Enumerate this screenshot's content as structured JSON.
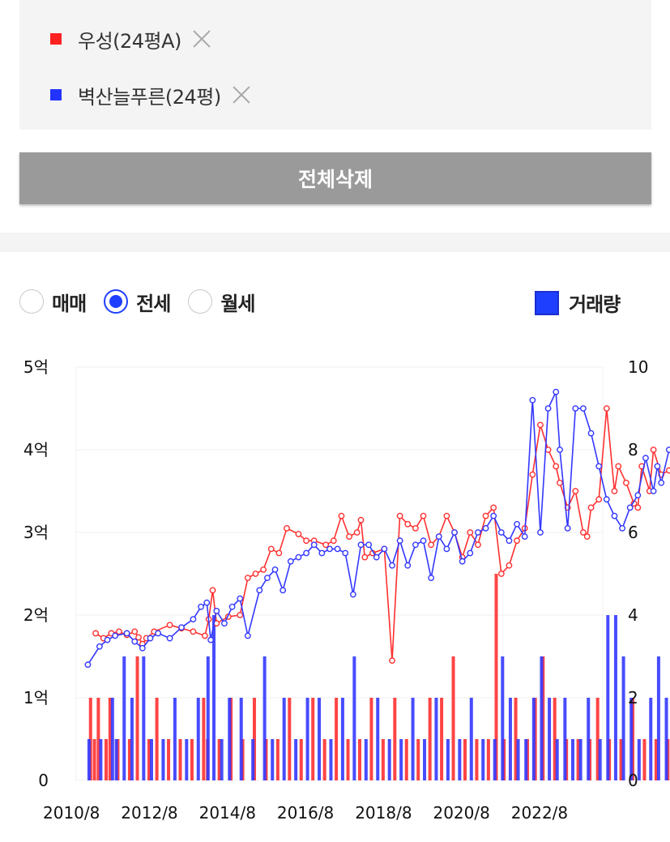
{
  "compare": {
    "items": [
      {
        "label": "우성(24평A)",
        "color": "#ff2020"
      },
      {
        "label": "벽산늘푸른(24평)",
        "color": "#2233ff"
      }
    ],
    "remove_icon": "close-icon"
  },
  "delete_all_label": "전체삭제",
  "tabs": [
    {
      "label": "매매",
      "selected": false
    },
    {
      "label": "전세",
      "selected": true
    },
    {
      "label": "월세",
      "selected": false
    }
  ],
  "volume_toggle": {
    "label": "거래량",
    "checked": true
  },
  "chart_data": {
    "type": "line",
    "title": "",
    "y_left_ticks": [
      "0",
      "1억",
      "2억",
      "3억",
      "4억",
      "5억"
    ],
    "y_right_ticks": [
      "0",
      "2",
      "4",
      "6",
      "8",
      "10"
    ],
    "x_ticks": [
      "2010/8",
      "2012/8",
      "2014/8",
      "2016/8",
      "2018/8",
      "2020/8",
      "2022/8"
    ],
    "y_left_range_eok": [
      0,
      5
    ],
    "y_right_range": [
      0,
      10
    ],
    "x_range_year": [
      2010.6,
      2024.1
    ],
    "grid": true,
    "price_unit": "억",
    "series": [
      {
        "name": "우성(24평A)",
        "color": "#ff3030",
        "prices": [
          [
            2011.1,
            1.78
          ],
          [
            2011.3,
            1.72
          ],
          [
            2011.5,
            1.78
          ],
          [
            2011.7,
            1.8
          ],
          [
            2011.9,
            1.76
          ],
          [
            2012.1,
            1.8
          ],
          [
            2012.2,
            1.73
          ],
          [
            2012.3,
            1.65
          ],
          [
            2012.4,
            1.72
          ],
          [
            2012.6,
            1.8
          ],
          [
            2013.0,
            1.88
          ],
          [
            2013.3,
            1.84
          ],
          [
            2013.6,
            1.8
          ],
          [
            2013.9,
            1.75
          ],
          [
            2014.0,
            1.95
          ],
          [
            2014.1,
            2.3
          ],
          [
            2014.2,
            1.9
          ],
          [
            2014.5,
            1.98
          ],
          [
            2014.8,
            2.0
          ],
          [
            2015.0,
            2.45
          ],
          [
            2015.2,
            2.5
          ],
          [
            2015.4,
            2.55
          ],
          [
            2015.6,
            2.8
          ],
          [
            2015.8,
            2.75
          ],
          [
            2016.0,
            3.05
          ],
          [
            2016.3,
            2.98
          ],
          [
            2016.5,
            2.9
          ],
          [
            2016.7,
            2.9
          ],
          [
            2017.0,
            2.85
          ],
          [
            2017.2,
            2.9
          ],
          [
            2017.4,
            3.2
          ],
          [
            2017.6,
            2.95
          ],
          [
            2017.8,
            3.0
          ],
          [
            2017.9,
            3.15
          ],
          [
            2018.0,
            2.7
          ],
          [
            2018.2,
            2.75
          ],
          [
            2018.5,
            2.8
          ],
          [
            2018.7,
            1.45
          ],
          [
            2018.9,
            3.2
          ],
          [
            2019.1,
            3.1
          ],
          [
            2019.3,
            3.05
          ],
          [
            2019.5,
            3.2
          ],
          [
            2019.7,
            2.85
          ],
          [
            2019.9,
            2.95
          ],
          [
            2020.1,
            3.2
          ],
          [
            2020.3,
            3.0
          ],
          [
            2020.5,
            2.7
          ],
          [
            2020.7,
            3.0
          ],
          [
            2020.9,
            2.85
          ],
          [
            2021.1,
            3.2
          ],
          [
            2021.3,
            3.3
          ],
          [
            2021.5,
            2.5
          ],
          [
            2021.7,
            2.6
          ],
          [
            2021.9,
            2.9
          ],
          [
            2022.1,
            3.05
          ],
          [
            2022.3,
            3.7
          ],
          [
            2022.5,
            4.3
          ],
          [
            2022.7,
            4.0
          ],
          [
            2022.9,
            3.8
          ],
          [
            2023.0,
            3.6
          ],
          [
            2023.2,
            3.3
          ],
          [
            2023.4,
            3.5
          ],
          [
            2023.6,
            3.0
          ],
          [
            2023.7,
            2.95
          ],
          [
            2023.8,
            3.3
          ],
          [
            2024.0,
            3.4
          ],
          [
            2024.2,
            4.5
          ],
          [
            2024.4,
            3.5
          ],
          [
            2024.5,
            3.8
          ],
          [
            2024.7,
            3.6
          ],
          [
            2024.9,
            3.35
          ],
          [
            2025.0,
            3.3
          ],
          [
            2025.1,
            3.8
          ],
          [
            2025.3,
            3.5
          ],
          [
            2025.4,
            4.0
          ],
          [
            2025.6,
            3.7
          ],
          [
            2025.8,
            3.75
          ]
        ],
        "volumes": [
          [
            2011.0,
            2
          ],
          [
            2011.1,
            1
          ],
          [
            2011.2,
            2
          ],
          [
            2011.4,
            1
          ],
          [
            2011.5,
            2
          ],
          [
            2011.7,
            1
          ],
          [
            2012.0,
            1
          ],
          [
            2012.2,
            3
          ],
          [
            2012.5,
            1
          ],
          [
            2012.7,
            2
          ],
          [
            2013.0,
            1
          ],
          [
            2013.3,
            1
          ],
          [
            2013.6,
            1
          ],
          [
            2013.9,
            2
          ],
          [
            2014.0,
            1
          ],
          [
            2014.3,
            1
          ],
          [
            2014.6,
            2
          ],
          [
            2014.9,
            1
          ],
          [
            2015.2,
            2
          ],
          [
            2015.5,
            1
          ],
          [
            2015.8,
            1
          ],
          [
            2016.1,
            2
          ],
          [
            2016.4,
            1
          ],
          [
            2016.7,
            2
          ],
          [
            2017.0,
            1
          ],
          [
            2017.3,
            2
          ],
          [
            2017.6,
            1
          ],
          [
            2017.9,
            1
          ],
          [
            2018.2,
            2
          ],
          [
            2018.5,
            1
          ],
          [
            2018.8,
            2
          ],
          [
            2019.1,
            1
          ],
          [
            2019.4,
            1
          ],
          [
            2019.7,
            2
          ],
          [
            2020.0,
            2
          ],
          [
            2020.3,
            3
          ],
          [
            2020.6,
            1
          ],
          [
            2020.9,
            1
          ],
          [
            2021.2,
            1
          ],
          [
            2021.4,
            5
          ],
          [
            2021.6,
            1
          ],
          [
            2021.9,
            2
          ],
          [
            2022.2,
            1
          ],
          [
            2022.4,
            2
          ],
          [
            2022.6,
            3
          ],
          [
            2022.9,
            2
          ],
          [
            2023.2,
            1
          ],
          [
            2023.5,
            1
          ],
          [
            2023.8,
            1
          ],
          [
            2024.0,
            2
          ],
          [
            2024.3,
            1
          ],
          [
            2024.6,
            1
          ],
          [
            2024.9,
            2
          ],
          [
            2025.2,
            1
          ],
          [
            2025.5,
            1
          ],
          [
            2025.8,
            1
          ]
        ]
      },
      {
        "name": "벽산늘푸른(24평)",
        "color": "#3338ff",
        "prices": [
          [
            2010.9,
            1.4
          ],
          [
            2011.2,
            1.62
          ],
          [
            2011.4,
            1.7
          ],
          [
            2011.6,
            1.75
          ],
          [
            2011.9,
            1.78
          ],
          [
            2012.1,
            1.68
          ],
          [
            2012.3,
            1.6
          ],
          [
            2012.5,
            1.72
          ],
          [
            2012.7,
            1.78
          ],
          [
            2013.0,
            1.72
          ],
          [
            2013.3,
            1.85
          ],
          [
            2013.6,
            1.95
          ],
          [
            2013.8,
            2.1
          ],
          [
            2013.95,
            2.15
          ],
          [
            2014.05,
            1.7
          ],
          [
            2014.2,
            2.05
          ],
          [
            2014.4,
            1.9
          ],
          [
            2014.6,
            2.1
          ],
          [
            2014.8,
            2.2
          ],
          [
            2015.0,
            1.75
          ],
          [
            2015.3,
            2.3
          ],
          [
            2015.5,
            2.45
          ],
          [
            2015.7,
            2.55
          ],
          [
            2015.9,
            2.3
          ],
          [
            2016.1,
            2.65
          ],
          [
            2016.3,
            2.7
          ],
          [
            2016.5,
            2.75
          ],
          [
            2016.7,
            2.85
          ],
          [
            2016.9,
            2.75
          ],
          [
            2017.1,
            2.8
          ],
          [
            2017.3,
            2.8
          ],
          [
            2017.5,
            2.75
          ],
          [
            2017.7,
            2.25
          ],
          [
            2017.9,
            2.85
          ],
          [
            2018.1,
            2.85
          ],
          [
            2018.3,
            2.7
          ],
          [
            2018.5,
            2.8
          ],
          [
            2018.7,
            2.6
          ],
          [
            2018.9,
            2.9
          ],
          [
            2019.1,
            2.6
          ],
          [
            2019.3,
            2.85
          ],
          [
            2019.5,
            2.9
          ],
          [
            2019.7,
            2.45
          ],
          [
            2019.9,
            2.95
          ],
          [
            2020.1,
            2.8
          ],
          [
            2020.3,
            3.0
          ],
          [
            2020.5,
            2.65
          ],
          [
            2020.7,
            2.75
          ],
          [
            2020.9,
            3.0
          ],
          [
            2021.1,
            3.05
          ],
          [
            2021.3,
            3.2
          ],
          [
            2021.5,
            3.0
          ],
          [
            2021.7,
            2.9
          ],
          [
            2021.9,
            3.1
          ],
          [
            2022.1,
            2.95
          ],
          [
            2022.3,
            4.6
          ],
          [
            2022.5,
            3.0
          ],
          [
            2022.7,
            4.5
          ],
          [
            2022.9,
            4.7
          ],
          [
            2023.0,
            4.0
          ],
          [
            2023.2,
            3.05
          ],
          [
            2023.4,
            4.5
          ],
          [
            2023.6,
            4.5
          ],
          [
            2023.8,
            4.2
          ],
          [
            2024.0,
            3.8
          ],
          [
            2024.2,
            3.4
          ],
          [
            2024.4,
            3.2
          ],
          [
            2024.6,
            3.05
          ],
          [
            2024.8,
            3.3
          ],
          [
            2025.0,
            3.45
          ],
          [
            2025.2,
            3.9
          ],
          [
            2025.4,
            3.5
          ],
          [
            2025.5,
            3.8
          ],
          [
            2025.6,
            3.6
          ],
          [
            2025.8,
            4.0
          ]
        ],
        "volumes": [
          [
            2010.9,
            1
          ],
          [
            2011.2,
            1
          ],
          [
            2011.5,
            2
          ],
          [
            2011.6,
            1
          ],
          [
            2011.8,
            3
          ],
          [
            2012.0,
            2
          ],
          [
            2012.3,
            3
          ],
          [
            2012.5,
            1
          ],
          [
            2012.8,
            1
          ],
          [
            2013.1,
            2
          ],
          [
            2013.4,
            1
          ],
          [
            2013.7,
            2
          ],
          [
            2013.95,
            3
          ],
          [
            2014.1,
            4
          ],
          [
            2014.3,
            1
          ],
          [
            2014.5,
            2
          ],
          [
            2014.8,
            2
          ],
          [
            2015.1,
            1
          ],
          [
            2015.4,
            3
          ],
          [
            2015.6,
            1
          ],
          [
            2015.9,
            2
          ],
          [
            2016.2,
            1
          ],
          [
            2016.5,
            2
          ],
          [
            2016.8,
            2
          ],
          [
            2017.1,
            1
          ],
          [
            2017.4,
            2
          ],
          [
            2017.7,
            3
          ],
          [
            2018.0,
            1
          ],
          [
            2018.3,
            2
          ],
          [
            2018.6,
            1
          ],
          [
            2018.9,
            1
          ],
          [
            2019.2,
            2
          ],
          [
            2019.5,
            1
          ],
          [
            2019.8,
            2
          ],
          [
            2020.1,
            1
          ],
          [
            2020.4,
            1
          ],
          [
            2020.7,
            2
          ],
          [
            2021.0,
            1
          ],
          [
            2021.3,
            1
          ],
          [
            2021.5,
            3
          ],
          [
            2021.7,
            2
          ],
          [
            2021.9,
            1
          ],
          [
            2022.1,
            1
          ],
          [
            2022.3,
            2
          ],
          [
            2022.5,
            3
          ],
          [
            2022.7,
            2
          ],
          [
            2022.9,
            1
          ],
          [
            2023.1,
            2
          ],
          [
            2023.3,
            1
          ],
          [
            2023.5,
            1
          ],
          [
            2023.7,
            2
          ],
          [
            2024.0,
            1
          ],
          [
            2024.2,
            4
          ],
          [
            2024.4,
            4
          ],
          [
            2024.6,
            3
          ],
          [
            2024.8,
            2
          ],
          [
            2025.0,
            1
          ],
          [
            2025.3,
            2
          ],
          [
            2025.5,
            3
          ],
          [
            2025.7,
            2
          ]
        ]
      }
    ]
  }
}
